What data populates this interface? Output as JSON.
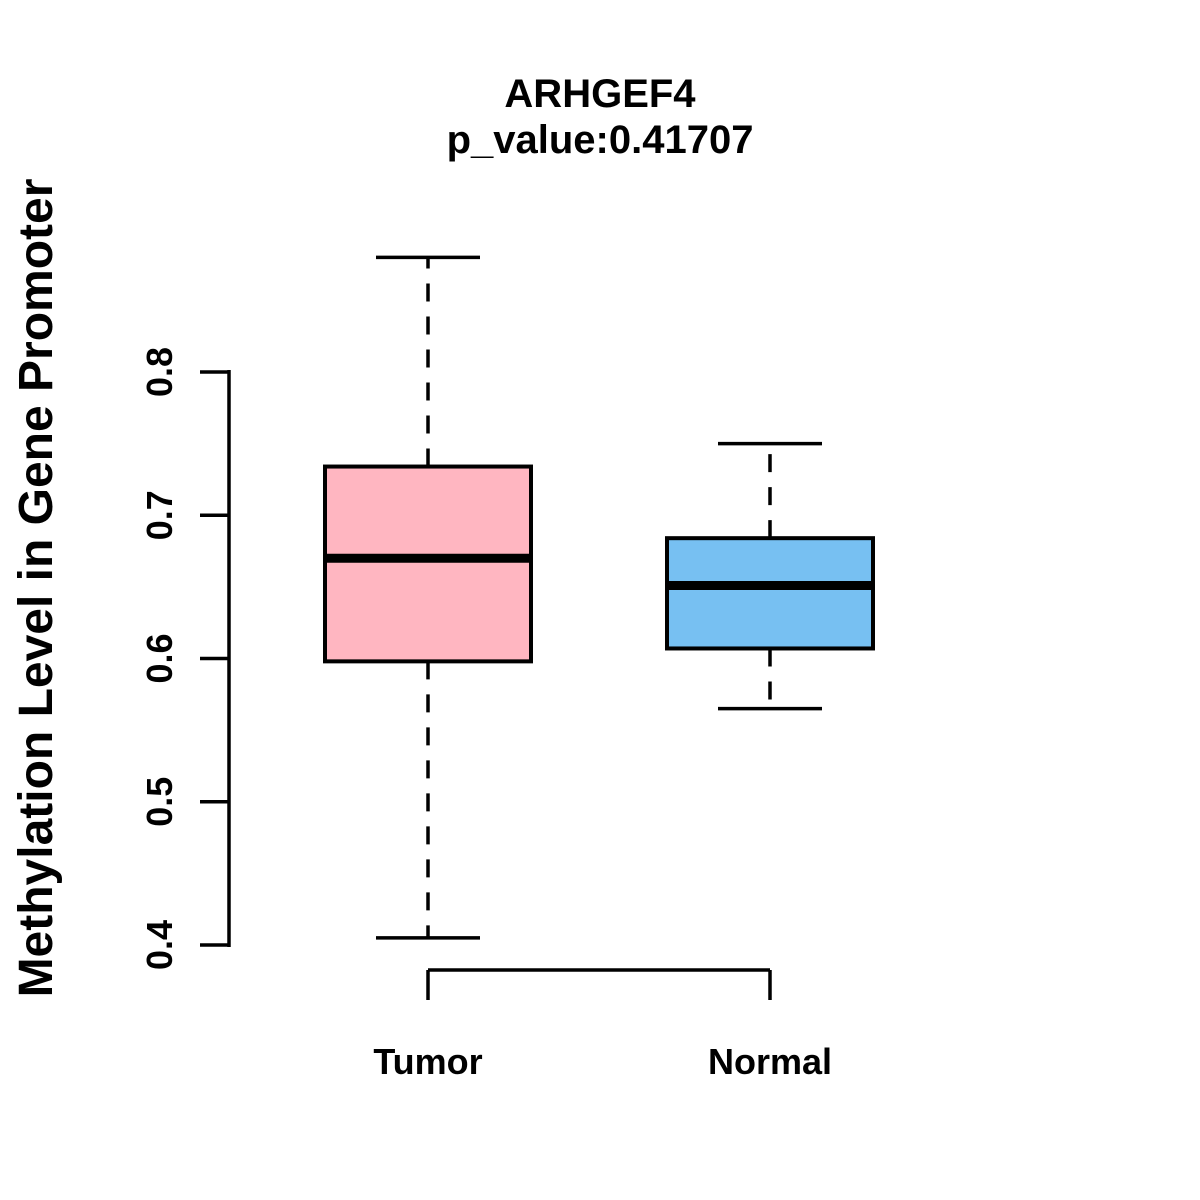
{
  "chart_data": {
    "type": "boxplot",
    "title": "ARHGEF4",
    "subtitle": "p_value:0.41707",
    "xlabel": "",
    "ylabel": "Methylation Level in Gene Promoter",
    "categories": [
      "Tumor",
      "Normal"
    ],
    "ylim": [
      0.4,
      0.8
    ],
    "y_ticks": [
      {
        "value": 0.4,
        "label": "0.4"
      },
      {
        "value": 0.5,
        "label": "0.5"
      },
      {
        "value": 0.6,
        "label": "0.6"
      },
      {
        "value": 0.7,
        "label": "0.7"
      },
      {
        "value": 0.8,
        "label": "0.8"
      }
    ],
    "grid": false,
    "legend_position": "none",
    "series": [
      {
        "name": "Tumor",
        "fill_color": "#FFB6C1",
        "whisker_low": 0.405,
        "q1": 0.598,
        "median": 0.67,
        "q3": 0.734,
        "whisker_high": 0.88
      },
      {
        "name": "Normal",
        "fill_color": "#77C0F2",
        "whisker_low": 0.565,
        "q1": 0.607,
        "median": 0.651,
        "q3": 0.684,
        "whisker_high": 0.75
      }
    ],
    "colors": {
      "stroke": "#000000",
      "background": "#FFFFFF",
      "tumor_fill": "#FFB6C1",
      "normal_fill": "#77C0F2"
    }
  }
}
